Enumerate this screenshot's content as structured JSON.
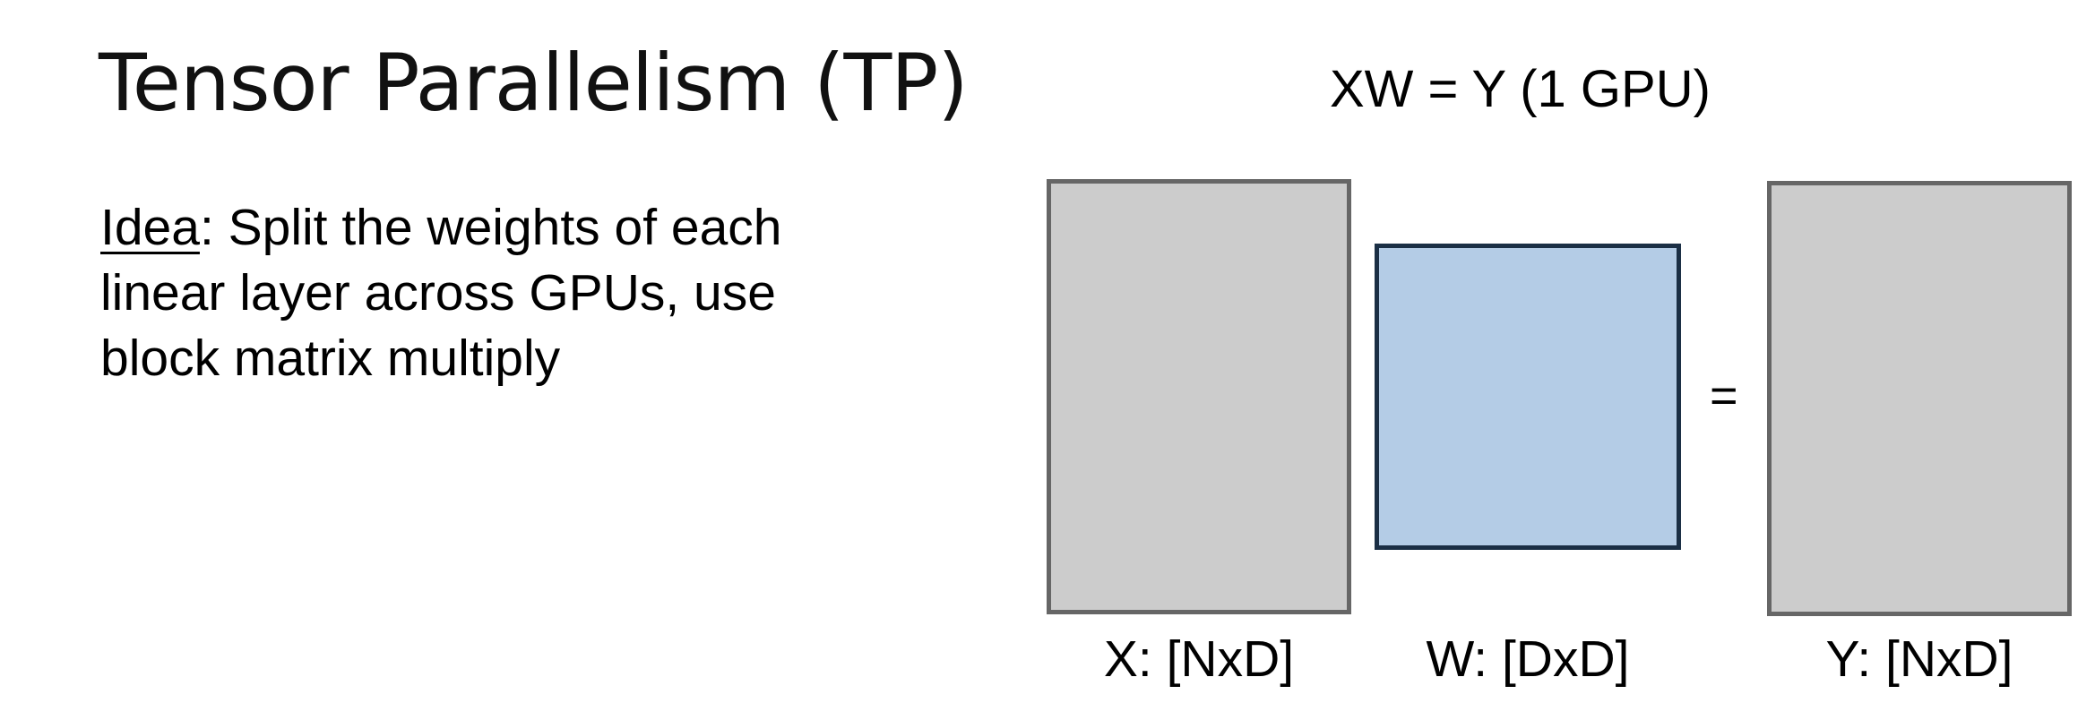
{
  "slide": {
    "title": "Tensor Parallelism (TP)",
    "idea_label": "Idea",
    "idea_text": ": Split the weights of each linear layer across GPUs, use block matrix multiply"
  },
  "diagram": {
    "title": "XW = Y (1 GPU)",
    "operator": "=",
    "matrices": [
      {
        "id": "X",
        "label": "X: [NxD]",
        "fill": "#cccccc",
        "border": "#666666"
      },
      {
        "id": "W",
        "label": "W: [DxD]",
        "fill": "#b4cce6",
        "border": "#1b2f45"
      },
      {
        "id": "Y",
        "label": "Y: [NxD]",
        "fill": "#cccccc",
        "border": "#666666"
      }
    ]
  }
}
